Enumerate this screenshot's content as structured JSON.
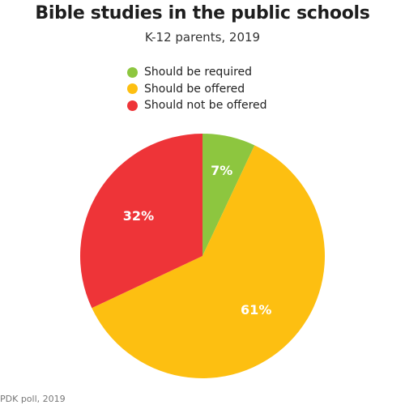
{
  "chart_data": {
    "type": "pie",
    "title": "Bible studies in the public schools",
    "subtitle": "K-12 parents, 2019",
    "legend_position": "top",
    "slices": [
      {
        "label": "Should be required",
        "value": 7,
        "display": "7%",
        "color": "#8dc63f"
      },
      {
        "label": "Should be offered",
        "value": 61,
        "display": "61%",
        "color": "#fdbf11"
      },
      {
        "label": "Should not be offered",
        "value": 32,
        "display": "32%",
        "color": "#ee3438"
      }
    ]
  },
  "source": "PDK poll, 2019"
}
